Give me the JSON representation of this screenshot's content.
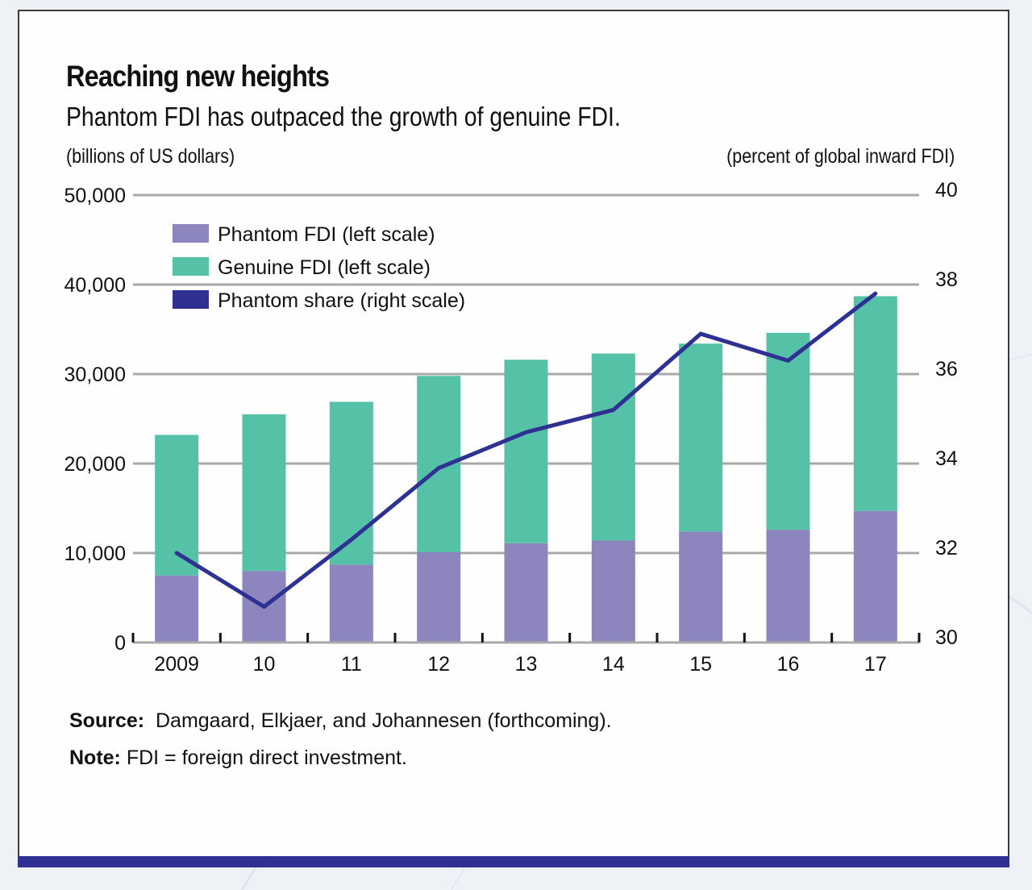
{
  "title": "Reaching new heights",
  "subtitle": "Phantom FDI has outpaced the growth of genuine FDI.",
  "left_unit": "(billions of US dollars)",
  "right_unit": "(percent of global inward FDI)",
  "source_label": "Source:",
  "source_text": "Damgaard, Elkjaer, and Johannesen (forthcoming).",
  "note_label": "Note:",
  "note_text": "FDI = foreign direct investment.",
  "colors": {
    "phantom": "#8d86be",
    "genuine": "#55c2a8",
    "share_line": "#2e3192",
    "grid": "#a9a9a9",
    "accent_bar": "#2e3192"
  },
  "chart_data": {
    "type": "bar",
    "stacked": true,
    "categories": [
      "2009",
      "10",
      "11",
      "12",
      "13",
      "14",
      "15",
      "16",
      "17"
    ],
    "series": [
      {
        "name": "Phantom FDI (left scale)",
        "axis": "left",
        "type": "bar",
        "values": [
          7500,
          8000,
          8700,
          10100,
          11100,
          11400,
          12400,
          12600,
          14700
        ]
      },
      {
        "name": "Genuine FDI (left scale)",
        "axis": "left",
        "type": "bar",
        "values": [
          15700,
          17500,
          18200,
          19700,
          20500,
          20900,
          21000,
          22000,
          24000
        ]
      },
      {
        "name": "Phantom share (right scale)",
        "axis": "right",
        "type": "line",
        "values": [
          32.0,
          30.8,
          32.3,
          33.9,
          34.7,
          35.2,
          36.9,
          36.3,
          37.8
        ]
      }
    ],
    "left_axis": {
      "ylim": [
        0,
        50000
      ],
      "ticks": [
        "0",
        "10,000",
        "20,000",
        "30,000",
        "40,000",
        "50,000"
      ]
    },
    "right_axis": {
      "ylim": [
        30,
        40
      ],
      "ticks": [
        "30",
        "32",
        "34",
        "36",
        "38",
        "40"
      ]
    },
    "grid": true,
    "legend_position": "top-left"
  }
}
